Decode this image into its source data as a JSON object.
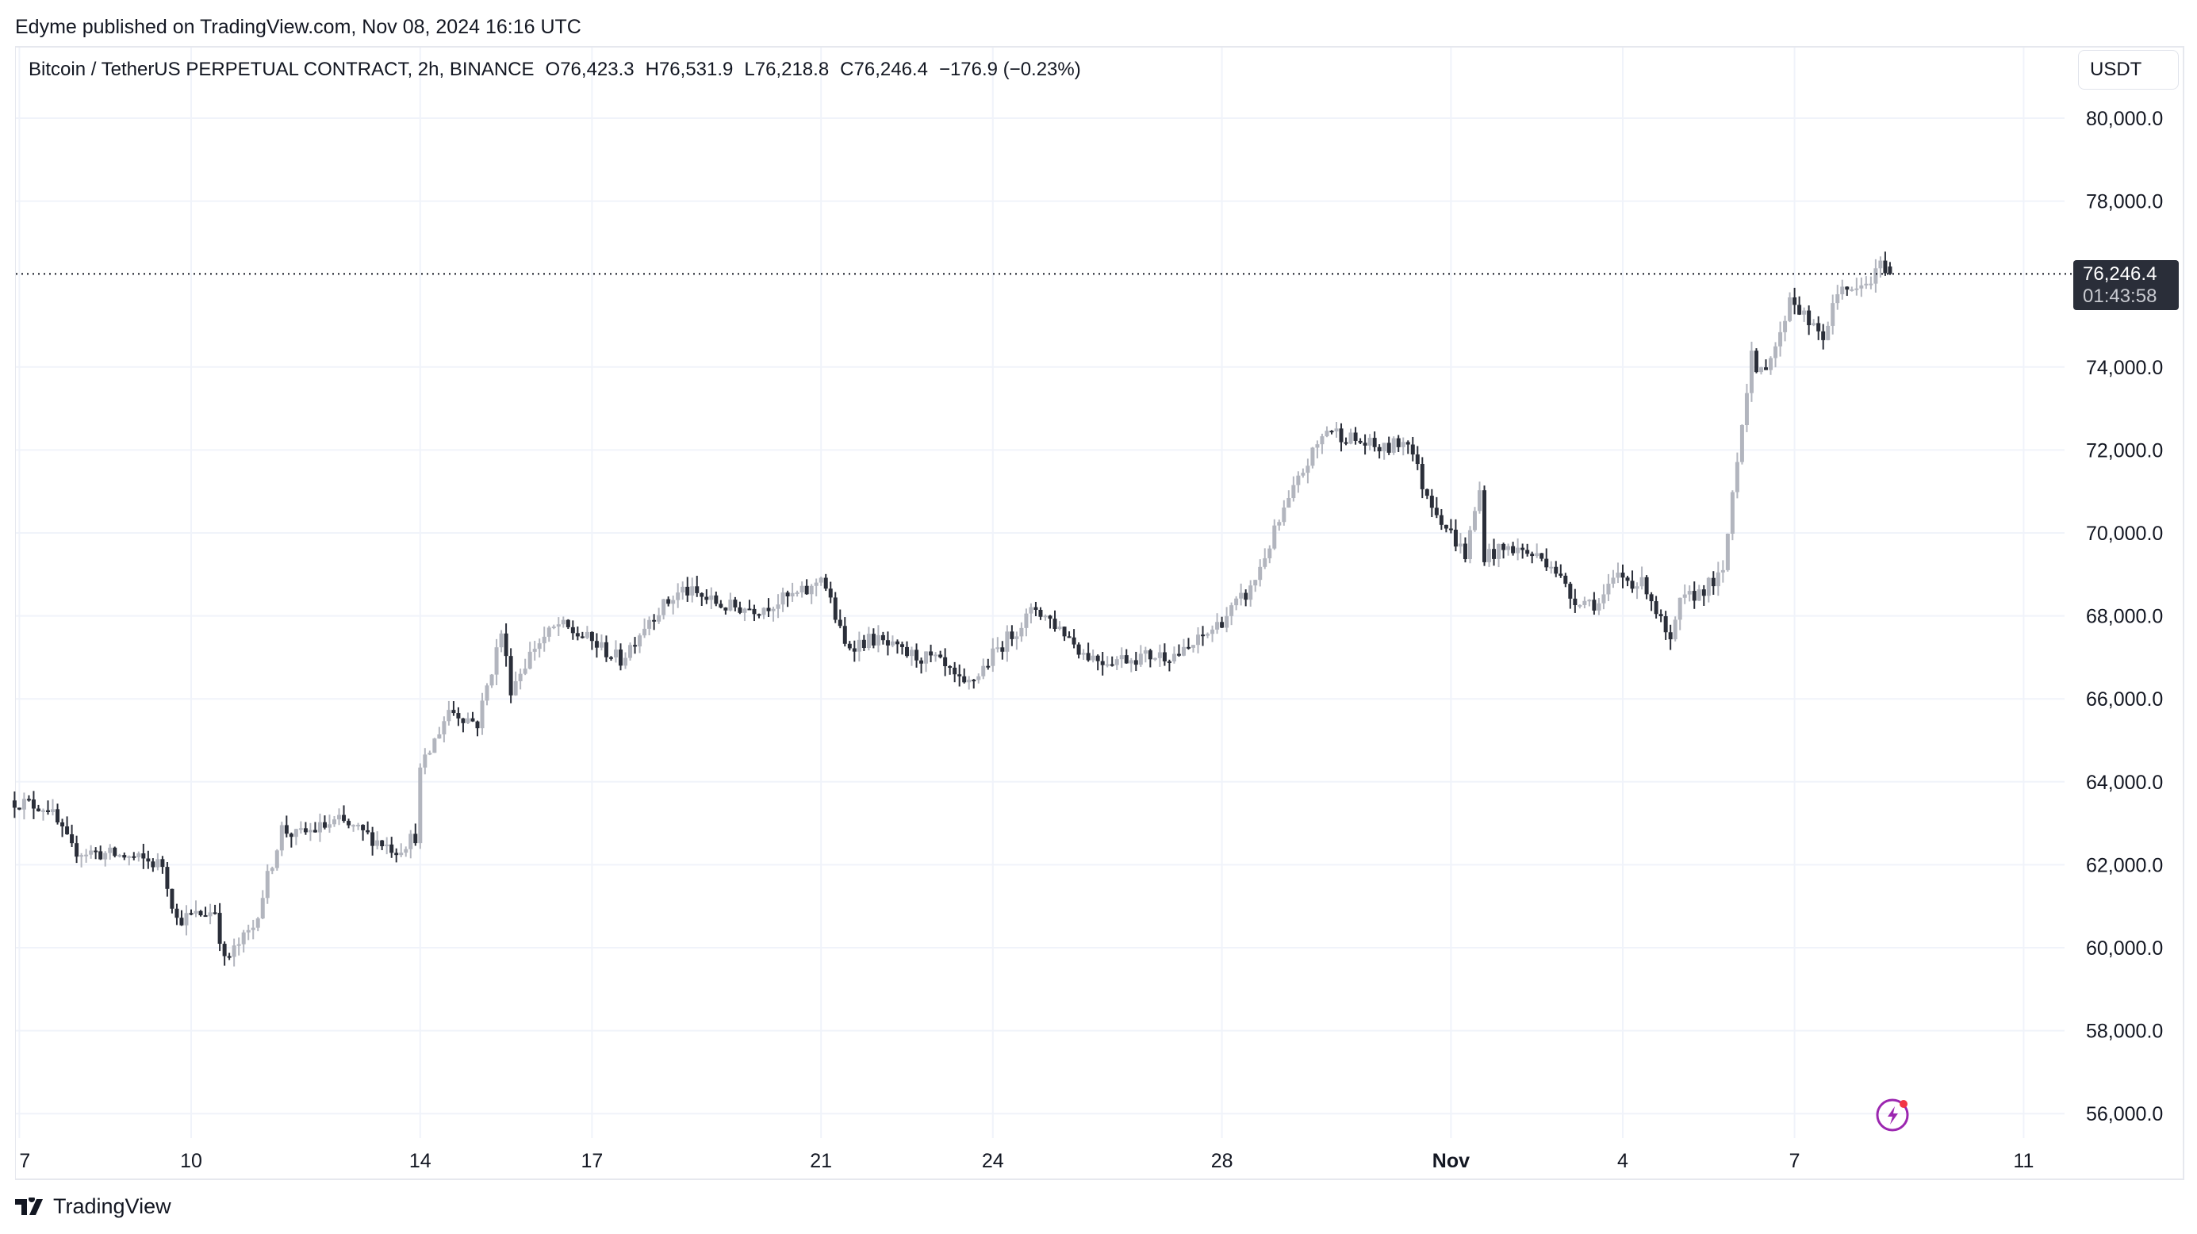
{
  "published": "Edyme published on TradingView.com, Nov 08, 2024 16:16 UTC",
  "legend": {
    "symbol": "Bitcoin / TetherUS PERPETUAL CONTRACT, 2h, BINANCE",
    "open": "O76,423.3",
    "high": "H76,531.9",
    "low": "L76,218.8",
    "close": "C76,246.4",
    "change": "−176.9 (−0.23%)"
  },
  "currency_button": "USDT",
  "last_price": {
    "value": "76,246.4",
    "countdown": "01:43:58"
  },
  "footer_brand": "TradingView",
  "colors": {
    "up": "#b2b5be",
    "down": "#2a2e39",
    "grid": "#f0f3fa",
    "alert_icon": "#9c27b0"
  },
  "icons": {
    "alert": "lightning-bolt-icon",
    "logo": "tradingview-logo-icon"
  },
  "chart_data": {
    "type": "candlestick",
    "interval": "2h",
    "ylim": [
      55500,
      81000
    ],
    "grid": true,
    "y_ticks": [
      {
        "value": 80000,
        "label": "80,000.0"
      },
      {
        "value": 78000,
        "label": "78,000.0"
      },
      {
        "value": 74000,
        "label": "74,000.0"
      },
      {
        "value": 72000,
        "label": "72,000.0"
      },
      {
        "value": 70000,
        "label": "70,000.0"
      },
      {
        "value": 68000,
        "label": "68,000.0"
      },
      {
        "value": 66000,
        "label": "66,000.0"
      },
      {
        "value": 64000,
        "label": "64,000.0"
      },
      {
        "value": 62000,
        "label": "62,000.0"
      },
      {
        "value": 60000,
        "label": "60,000.0"
      },
      {
        "value": 58000,
        "label": "58,000.0"
      },
      {
        "value": 56000,
        "label": "56,000.0"
      }
    ],
    "x_ticks": [
      {
        "date": "2024-10-07",
        "label": "7"
      },
      {
        "date": "2024-10-10",
        "label": "10"
      },
      {
        "date": "2024-10-14",
        "label": "14"
      },
      {
        "date": "2024-10-17",
        "label": "17"
      },
      {
        "date": "2024-10-21",
        "label": "21"
      },
      {
        "date": "2024-10-24",
        "label": "24"
      },
      {
        "date": "2024-10-28",
        "label": "28"
      },
      {
        "date": "2024-11-01",
        "label": "Nov"
      },
      {
        "date": "2024-11-04",
        "label": "4"
      },
      {
        "date": "2024-11-07",
        "label": "7"
      },
      {
        "date": "2024-11-11",
        "label": "11"
      }
    ],
    "last_candle": {
      "time": "2024-11-08T16:00",
      "open": 76423.3,
      "high": 76531.9,
      "low": 76218.8,
      "close": 76246.4
    },
    "close_path": [
      [
        "2024-10-06T22:00",
        63550
      ],
      [
        "2024-10-07T14:00",
        63380
      ],
      [
        "2024-10-08T00:00",
        62360
      ],
      [
        "2024-10-08T22:00",
        62200
      ],
      [
        "2024-10-09T14:00",
        62000
      ],
      [
        "2024-10-09T20:00",
        60670
      ],
      [
        "2024-10-10T12:00",
        60900
      ],
      [
        "2024-10-10T16:00",
        59650
      ],
      [
        "2024-10-11T04:00",
        60500
      ],
      [
        "2024-10-11T16:00",
        62870
      ],
      [
        "2024-10-11T22:00",
        62700
      ],
      [
        "2024-10-12T16:00",
        63040
      ],
      [
        "2024-10-13T04:00",
        62700
      ],
      [
        "2024-10-13T16:00",
        62360
      ],
      [
        "2024-10-14T00:00",
        62700
      ],
      [
        "2024-10-14T02:00",
        64230
      ],
      [
        "2024-10-14T14:00",
        65750
      ],
      [
        "2024-10-15T02:00",
        65410
      ],
      [
        "2024-10-15T12:00",
        67610
      ],
      [
        "2024-10-15T16:00",
        66260
      ],
      [
        "2024-10-16T02:00",
        67270
      ],
      [
        "2024-10-16T12:00",
        67780
      ],
      [
        "2024-10-17T00:00",
        67440
      ],
      [
        "2024-10-17T14:00",
        66930
      ],
      [
        "2024-10-18T02:00",
        67950
      ],
      [
        "2024-10-18T16:00",
        68630
      ],
      [
        "2024-10-19T10:00",
        68220
      ],
      [
        "2024-10-20T00:00",
        68190
      ],
      [
        "2024-10-20T22:00",
        68630
      ],
      [
        "2024-10-21T02:00",
        69030
      ],
      [
        "2024-10-21T12:00",
        67270
      ],
      [
        "2024-10-22T00:00",
        67440
      ],
      [
        "2024-10-22T12:00",
        67100
      ],
      [
        "2024-10-23T02:00",
        66930
      ],
      [
        "2024-10-23T14:00",
        66260
      ],
      [
        "2024-10-23T20:00",
        66600
      ],
      [
        "2024-10-24T04:00",
        67200
      ],
      [
        "2024-10-24T20:00",
        68190
      ],
      [
        "2024-10-25T08:00",
        67610
      ],
      [
        "2024-10-25T16:00",
        67100
      ],
      [
        "2024-10-26T00:00",
        66930
      ],
      [
        "2024-10-26T12:00",
        67000
      ],
      [
        "2024-10-27T10:00",
        67100
      ],
      [
        "2024-10-28T00:00",
        67780
      ],
      [
        "2024-10-28T14:00",
        68630
      ],
      [
        "2024-10-29T00:00",
        70000
      ],
      [
        "2024-10-29T12:00",
        71500
      ],
      [
        "2024-10-29T22:00",
        72520
      ],
      [
        "2024-10-30T12:00",
        72180
      ],
      [
        "2024-10-30T22:00",
        72000
      ],
      [
        "2024-10-31T08:00",
        72280
      ],
      [
        "2024-10-31T14:00",
        71160
      ],
      [
        "2024-11-01T00:00",
        70150
      ],
      [
        "2024-11-01T08:00",
        69470
      ],
      [
        "2024-11-01T14:00",
        71000
      ],
      [
        "2024-11-01T16:00",
        69470
      ],
      [
        "2024-11-02T04:00",
        69640
      ],
      [
        "2024-11-02T20:00",
        69300
      ],
      [
        "2024-11-03T04:00",
        68460
      ],
      [
        "2024-11-03T16:00",
        68290
      ],
      [
        "2024-11-04T00:00",
        68970
      ],
      [
        "2024-11-04T12:00",
        68700
      ],
      [
        "2024-11-04T22:00",
        67270
      ],
      [
        "2024-11-05T02:00",
        68290
      ],
      [
        "2024-11-05T20:00",
        68970
      ],
      [
        "2024-11-06T00:00",
        71000
      ],
      [
        "2024-11-06T08:00",
        74380
      ],
      [
        "2024-11-06T10:00",
        73700
      ],
      [
        "2024-11-06T20:00",
        74720
      ],
      [
        "2024-11-07T00:00",
        75740
      ],
      [
        "2024-11-07T10:00",
        74890
      ],
      [
        "2024-11-07T14:00",
        74720
      ],
      [
        "2024-11-07T22:00",
        76070
      ],
      [
        "2024-11-08T02:00",
        75740
      ],
      [
        "2024-11-08T10:00",
        76070
      ],
      [
        "2024-11-08T14:00",
        76423.3
      ]
    ]
  }
}
